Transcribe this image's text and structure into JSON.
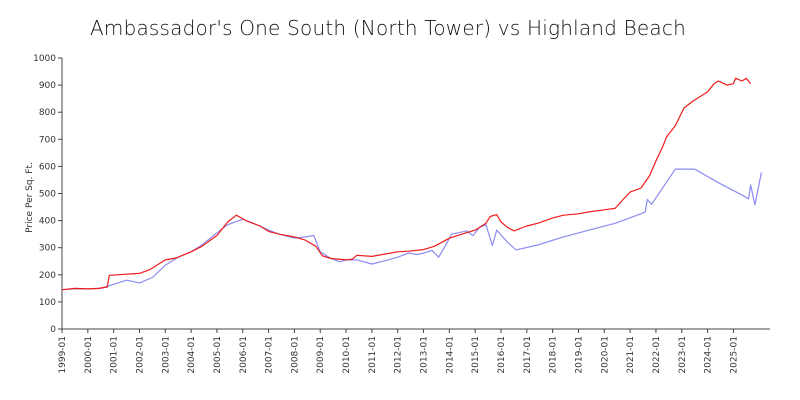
{
  "chart_data": {
    "type": "line",
    "title": "Ambassador's One South (North Tower) vs Highland Beach",
    "xlabel": "",
    "ylabel": "Price Per Sq. Ft.",
    "ylim": [
      0,
      1000
    ],
    "yticks": [
      0,
      100,
      200,
      300,
      400,
      500,
      600,
      700,
      800,
      900,
      1000
    ],
    "xlim": [
      "1999-01",
      "2026-06"
    ],
    "xticks": [
      "1999-01",
      "2000-01",
      "2001-01",
      "2002-01",
      "2003-01",
      "2004-01",
      "2005-01",
      "2006-01",
      "2007-01",
      "2008-01",
      "2009-01",
      "2010-01",
      "2011-01",
      "2012-01",
      "2013-01",
      "2014-01",
      "2015-01",
      "2016-01",
      "2017-01",
      "2018-01",
      "2019-01",
      "2020-01",
      "2021-01",
      "2022-01",
      "2023-01",
      "2024-01",
      "2025-01"
    ],
    "grid": false,
    "legend": "none",
    "series": [
      {
        "color": "#ee1c1c",
        "points": [
          [
            "1999-01",
            145
          ],
          [
            "1999-07",
            150
          ],
          [
            "2000-01",
            148
          ],
          [
            "2000-06",
            150
          ],
          [
            "2000-10",
            155
          ],
          [
            "2000-11",
            198
          ],
          [
            "2001-06",
            202
          ],
          [
            "2002-01",
            205
          ],
          [
            "2002-06",
            220
          ],
          [
            "2003-01",
            255
          ],
          [
            "2003-06",
            262
          ],
          [
            "2004-01",
            285
          ],
          [
            "2004-06",
            305
          ],
          [
            "2005-01",
            345
          ],
          [
            "2005-06",
            395
          ],
          [
            "2005-10",
            420
          ],
          [
            "2006-03",
            398
          ],
          [
            "2006-09",
            380
          ],
          [
            "2007-01",
            360
          ],
          [
            "2007-06",
            350
          ],
          [
            "2008-01",
            340
          ],
          [
            "2008-06",
            328
          ],
          [
            "2008-11",
            305
          ],
          [
            "2009-02",
            270
          ],
          [
            "2009-06",
            260
          ],
          [
            "2010-01",
            255
          ],
          [
            "2010-04",
            258
          ],
          [
            "2010-06",
            272
          ],
          [
            "2011-01",
            268
          ],
          [
            "2011-06",
            275
          ],
          [
            "2012-01",
            285
          ],
          [
            "2012-06",
            287
          ],
          [
            "2013-01",
            293
          ],
          [
            "2013-06",
            305
          ],
          [
            "2014-01",
            335
          ],
          [
            "2014-06",
            348
          ],
          [
            "2015-01",
            365
          ],
          [
            "2015-06",
            390
          ],
          [
            "2015-08",
            415
          ],
          [
            "2015-11",
            422
          ],
          [
            "2016-01",
            395
          ],
          [
            "2016-04",
            375
          ],
          [
            "2016-07",
            362
          ],
          [
            "2017-01",
            380
          ],
          [
            "2017-06",
            390
          ],
          [
            "2018-01",
            410
          ],
          [
            "2018-06",
            420
          ],
          [
            "2019-01",
            425
          ],
          [
            "2019-06",
            432
          ],
          [
            "2020-01",
            440
          ],
          [
            "2020-06",
            445
          ],
          [
            "2020-10",
            480
          ],
          [
            "2021-01",
            505
          ],
          [
            "2021-06",
            520
          ],
          [
            "2021-10",
            565
          ],
          [
            "2022-01",
            620
          ],
          [
            "2022-04",
            670
          ],
          [
            "2022-06",
            710
          ],
          [
            "2022-10",
            750
          ],
          [
            "2023-02",
            815
          ],
          [
            "2023-06",
            840
          ],
          [
            "2024-01",
            875
          ],
          [
            "2024-04",
            905
          ],
          [
            "2024-06",
            915
          ],
          [
            "2024-10",
            900
          ],
          [
            "2025-01",
            905
          ],
          [
            "2025-02",
            925
          ],
          [
            "2025-05",
            915
          ],
          [
            "2025-07",
            925
          ],
          [
            "2025-09",
            905
          ]
        ]
      },
      {
        "color": "#8c8cf2",
        "points": [
          [
            "1999-01",
            145
          ],
          [
            "1999-07",
            148
          ],
          [
            "2000-01",
            148
          ],
          [
            "2000-07",
            150
          ],
          [
            "2001-01",
            165
          ],
          [
            "2001-07",
            180
          ],
          [
            "2002-01",
            170
          ],
          [
            "2002-07",
            190
          ],
          [
            "2003-01",
            235
          ],
          [
            "2003-07",
            265
          ],
          [
            "2004-01",
            285
          ],
          [
            "2004-06",
            310
          ],
          [
            "2005-01",
            355
          ],
          [
            "2005-06",
            385
          ],
          [
            "2006-01",
            405
          ],
          [
            "2006-06",
            390
          ],
          [
            "2007-01",
            365
          ],
          [
            "2007-06",
            350
          ],
          [
            "2008-01",
            335
          ],
          [
            "2008-06",
            340
          ],
          [
            "2008-10",
            345
          ],
          [
            "2009-01",
            285
          ],
          [
            "2009-06",
            260
          ],
          [
            "2009-10",
            248
          ],
          [
            "2010-01",
            255
          ],
          [
            "2010-06",
            255
          ],
          [
            "2011-01",
            240
          ],
          [
            "2011-06",
            250
          ],
          [
            "2012-01",
            265
          ],
          [
            "2012-06",
            280
          ],
          [
            "2012-10",
            275
          ],
          [
            "2013-01",
            280
          ],
          [
            "2013-05",
            290
          ],
          [
            "2013-08",
            265
          ],
          [
            "2013-11",
            305
          ],
          [
            "2014-02",
            350
          ],
          [
            "2014-06",
            357
          ],
          [
            "2014-09",
            362
          ],
          [
            "2014-12",
            345
          ],
          [
            "2015-03",
            375
          ],
          [
            "2015-06",
            385
          ],
          [
            "2015-09",
            308
          ],
          [
            "2015-11",
            365
          ],
          [
            "2016-04",
            320
          ],
          [
            "2016-08",
            292
          ],
          [
            "2017-06",
            310
          ],
          [
            "2018-06",
            340
          ],
          [
            "2019-06",
            365
          ],
          [
            "2020-06",
            390
          ],
          [
            "2021-06",
            425
          ],
          [
            "2021-08",
            432
          ],
          [
            "2021-09",
            478
          ],
          [
            "2021-11",
            460
          ],
          [
            "2022-10",
            590
          ],
          [
            "2023-06",
            590
          ],
          [
            "2023-07",
            590
          ],
          [
            "2024-06",
            540
          ],
          [
            "2025-06",
            490
          ],
          [
            "2025-08",
            480
          ],
          [
            "2025-09",
            532
          ],
          [
            "2025-11",
            458
          ],
          [
            "2026-02",
            578
          ]
        ]
      }
    ]
  }
}
